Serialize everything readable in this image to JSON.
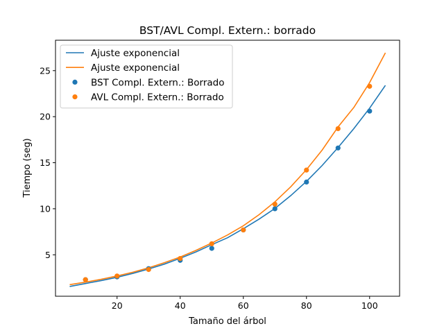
{
  "chart_data": {
    "type": "scatter",
    "title": "BST/AVL Compl. Extern.: borrado",
    "xlabel": "Tamaño del árbol",
    "ylabel": "Tiempo (seg)",
    "xlim": [
      0.5,
      109.5
    ],
    "ylim": [
      0.5,
      28.3
    ],
    "xticks": [
      20,
      40,
      60,
      80,
      100
    ],
    "yticks": [
      5,
      10,
      15,
      20,
      25
    ],
    "legend_position": "upper-left",
    "series": [
      {
        "name": "BST Compl. Extern.: Borrado",
        "kind": "points",
        "color": "#1f77b4",
        "x": [
          10,
          20,
          30,
          40,
          50,
          60,
          70,
          80,
          90,
          100
        ],
        "y": [
          2.3,
          2.6,
          3.5,
          4.4,
          5.7,
          7.7,
          10.0,
          12.9,
          16.6,
          20.6
        ]
      },
      {
        "name": "AVL Compl. Extern.: Borrado",
        "kind": "points",
        "color": "#ff7f0e",
        "x": [
          10,
          20,
          30,
          40,
          50,
          60,
          70,
          80,
          90,
          100
        ],
        "y": [
          2.3,
          2.7,
          3.4,
          4.6,
          6.2,
          7.7,
          10.5,
          14.2,
          18.7,
          23.3
        ]
      },
      {
        "name": "Ajuste exponencial",
        "kind": "line",
        "color": "#1f77b4",
        "x": [
          5,
          10,
          15,
          20,
          25,
          30,
          35,
          40,
          45,
          50,
          55,
          60,
          65,
          70,
          75,
          80,
          85,
          90,
          95,
          100,
          105
        ],
        "y": [
          1.56,
          1.88,
          2.2,
          2.56,
          2.98,
          3.46,
          3.99,
          4.62,
          5.31,
          6.1,
          6.85,
          7.83,
          8.88,
          10.03,
          11.42,
          12.97,
          14.71,
          16.65,
          18.7,
          20.92,
          23.4
        ]
      },
      {
        "name": "Ajuste exponencial",
        "kind": "line",
        "color": "#ff7f0e",
        "x": [
          5,
          10,
          15,
          20,
          25,
          30,
          35,
          40,
          45,
          50,
          55,
          60,
          65,
          70,
          75,
          80,
          85,
          90,
          95,
          100,
          105
        ],
        "y": [
          1.76,
          2.03,
          2.34,
          2.7,
          3.11,
          3.59,
          4.14,
          4.76,
          5.48,
          6.28,
          7.15,
          8.15,
          9.36,
          10.75,
          12.38,
          14.25,
          16.39,
          18.88,
          21.0,
          23.7,
          26.93
        ]
      }
    ]
  }
}
